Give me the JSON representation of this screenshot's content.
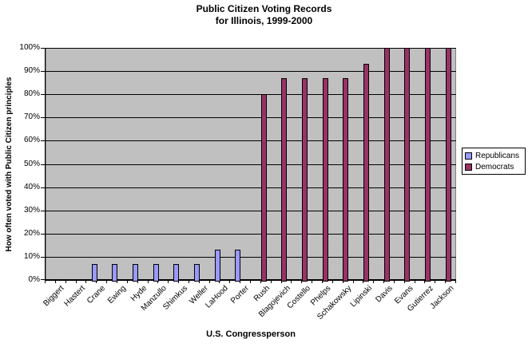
{
  "title": {
    "line1": "Public Citizen Voting Records",
    "line2": "for Illinois, 1999-2000"
  },
  "y_axis": {
    "title": "How often voted with Public Citizen principles",
    "tick_labels": [
      "0%",
      "10%",
      "20%",
      "30%",
      "40%",
      "50%",
      "60%",
      "70%",
      "80%",
      "90%",
      "100%"
    ]
  },
  "x_axis": {
    "title": "U.S. Congressperson"
  },
  "legend": {
    "items": [
      {
        "label": "Republicans",
        "color": "#9999FF"
      },
      {
        "label": "Democrats",
        "color": "#993366"
      }
    ]
  },
  "colors": {
    "plot_background": "#C0C0C0",
    "gridline": "#000000",
    "plot_border": "#808080",
    "republican_fill": "#9999FF",
    "democrat_fill": "#993366",
    "bar_border": "#000000"
  },
  "chart_data": {
    "type": "bar",
    "title": "Public Citizen Voting Records for Illinois, 1999-2000",
    "xlabel": "U.S. Congressperson",
    "ylabel": "How often voted with Public Citizen principles",
    "ylim": [
      0,
      100
    ],
    "ytick_step": 10,
    "grid": "horizontal",
    "legend_position": "right",
    "categories": [
      "Biggert",
      "Hastert",
      "Crane",
      "Ewing",
      "Hyde",
      "Manzullo",
      "Shimkus",
      "Weller",
      "LaHood",
      "Porter",
      "Rush",
      "Blagojevich",
      "Costello",
      "Phelps",
      "Schakowsky",
      "Lipinski",
      "Davis",
      "Evans",
      "Gutierrez",
      "Jackson"
    ],
    "series": [
      {
        "name": "Republicans",
        "color": "#9999FF",
        "values": [
          0,
          0,
          7,
          7,
          7,
          7,
          7,
          7,
          13,
          13,
          null,
          null,
          null,
          null,
          null,
          null,
          null,
          null,
          null,
          null
        ]
      },
      {
        "name": "Democrats",
        "color": "#993366",
        "values": [
          null,
          null,
          null,
          null,
          null,
          null,
          null,
          null,
          null,
          null,
          80,
          87,
          87,
          87,
          87,
          93,
          100,
          100,
          100,
          100
        ]
      }
    ]
  }
}
